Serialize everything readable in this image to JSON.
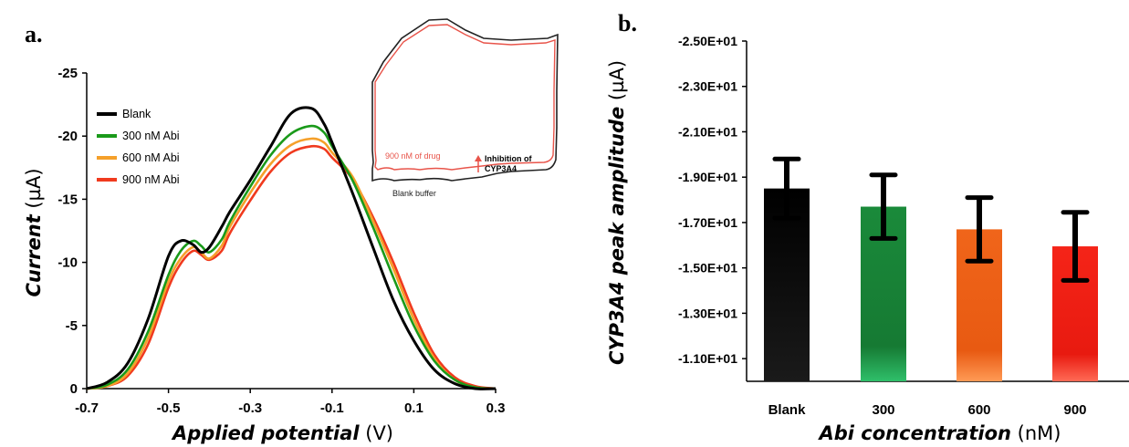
{
  "panels": {
    "a_label": "a.",
    "b_label": "b."
  },
  "panel_a": {
    "ylabel_italic": "Current",
    "ylabel_unit": " (µA)",
    "xlabel_italic": "Applied potential",
    "xlabel_unit": " (V)",
    "yticks": [
      "-25",
      "-20",
      "-15",
      "-10",
      "-5",
      "0"
    ],
    "xticks": [
      "-0.7",
      "-0.5",
      "-0.3",
      "-0.1",
      "0.1",
      "0.3"
    ],
    "legend": [
      {
        "label": "Blank",
        "color": "#000000"
      },
      {
        "label": "300 nM Abi",
        "color": "#1a9a1a"
      },
      {
        "label": "600 nM Abi",
        "color": "#f5a02a"
      },
      {
        "label": "900 nM Abi",
        "color": "#f03a1e"
      }
    ],
    "inset": {
      "drug_label": "900 nM of drug",
      "buffer_label": "Blank buffer",
      "inhibition_line1": "Inhibition of",
      "inhibition_line2": "CYP3A4",
      "drug_color": "#e8544a",
      "arrow_color": "#e8544a"
    }
  },
  "panel_b": {
    "ylabel_italic": "CYP3A4 peak amplitude",
    "ylabel_unit": " (µA)",
    "xlabel_italic": "Abi concentration",
    "xlabel_unit": " (nM)",
    "yticks": [
      "-2.50E+01",
      "-2.30E+01",
      "-2.10E+01",
      "-1.90E+01",
      "-1.70E+01",
      "-1.50E+01",
      "-1.30E+01",
      "-1.10E+01"
    ]
  },
  "chart_data": [
    {
      "type": "line",
      "xlabel": "Applied potential (V)",
      "ylabel": "Current (µA)",
      "xlim": [
        -0.7,
        0.3
      ],
      "ylim": [
        0,
        -25
      ],
      "y_axis_inverted": true,
      "grid": false,
      "legend_position": "top-left",
      "x": [
        -0.7,
        -0.65,
        -0.6,
        -0.55,
        -0.5,
        -0.47,
        -0.44,
        -0.42,
        -0.4,
        -0.37,
        -0.35,
        -0.3,
        -0.25,
        -0.2,
        -0.15,
        -0.12,
        -0.1,
        -0.05,
        0.0,
        0.05,
        0.1,
        0.15,
        0.2,
        0.25,
        0.3
      ],
      "series": [
        {
          "name": "Blank",
          "color": "#000000",
          "values": [
            0,
            -0.5,
            -2.0,
            -5.5,
            -10.5,
            -11.7,
            -11.4,
            -10.8,
            -11.2,
            -12.8,
            -14.0,
            -16.5,
            -19.2,
            -21.8,
            -22.2,
            -21.0,
            -19.5,
            -15.5,
            -11.2,
            -7.0,
            -3.8,
            -1.5,
            -0.4,
            0,
            0
          ]
        },
        {
          "name": "300 nM Abi",
          "color": "#1a9a1a",
          "values": [
            0,
            -0.3,
            -1.5,
            -4.5,
            -9.0,
            -10.9,
            -11.7,
            -11.3,
            -10.8,
            -11.8,
            -13.2,
            -16.0,
            -18.5,
            -20.2,
            -20.8,
            -20.3,
            -19.2,
            -16.5,
            -12.8,
            -8.8,
            -5.0,
            -2.2,
            -0.7,
            -0.1,
            0
          ]
        },
        {
          "name": "600 nM Abi",
          "color": "#f5a02a",
          "values": [
            0,
            -0.2,
            -1.2,
            -4.0,
            -8.5,
            -10.3,
            -11.2,
            -10.8,
            -10.3,
            -11.3,
            -12.8,
            -15.5,
            -17.8,
            -19.3,
            -19.8,
            -19.5,
            -18.7,
            -16.8,
            -13.3,
            -9.5,
            -5.5,
            -2.4,
            -0.7,
            -0.1,
            0
          ]
        },
        {
          "name": "900 nM Abi",
          "color": "#f03a1e",
          "values": [
            0,
            -0.2,
            -1.0,
            -3.5,
            -8.0,
            -9.9,
            -10.9,
            -10.6,
            -10.2,
            -10.9,
            -12.3,
            -14.9,
            -17.2,
            -18.7,
            -19.2,
            -19.0,
            -18.3,
            -16.6,
            -13.6,
            -10.0,
            -6.0,
            -2.7,
            -0.9,
            -0.2,
            0
          ]
        }
      ]
    },
    {
      "type": "bar",
      "categories": [
        "Blank",
        "300",
        "600",
        "900"
      ],
      "values": [
        -18.5,
        -17.7,
        -16.7,
        -15.95
      ],
      "errors": [
        1.3,
        1.4,
        1.4,
        1.5
      ],
      "colors": [
        "#000000",
        "#1d8a3a",
        "#f0651a",
        "#f5201a"
      ],
      "xlabel": "Abi concentration (nM)",
      "ylabel": "CYP3A4 peak amplitude (µA)",
      "ylim": [
        -10.0,
        -25.0
      ],
      "y_axis_inverted": true,
      "grid": false
    }
  ]
}
